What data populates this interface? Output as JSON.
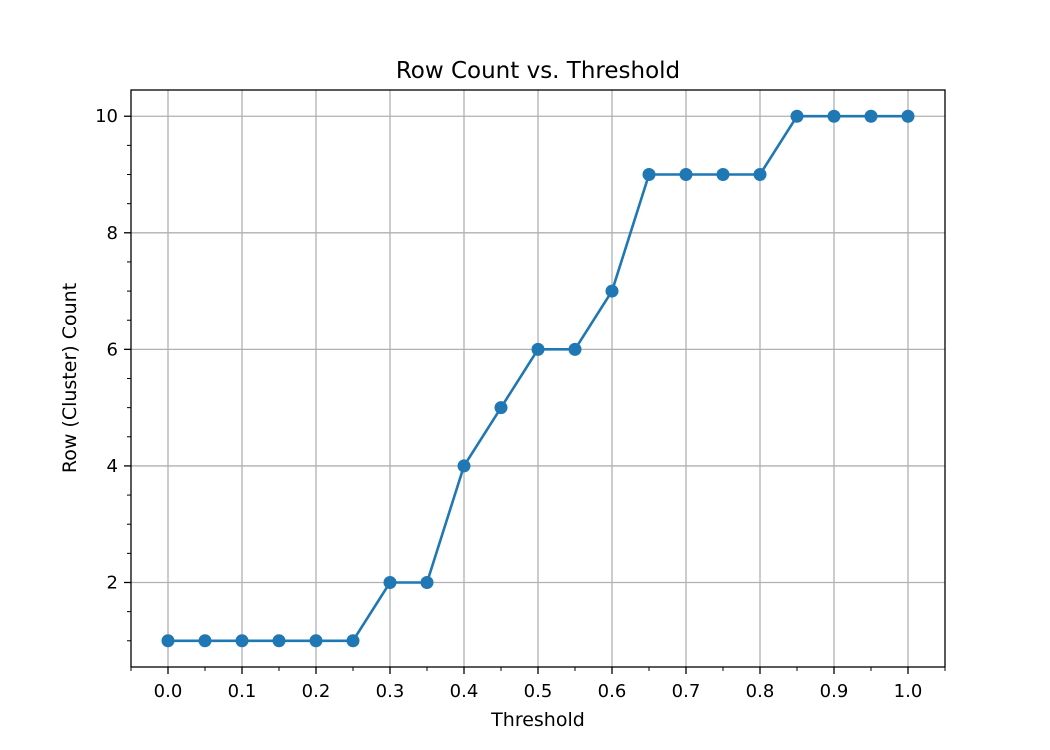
{
  "chart_data": {
    "type": "line",
    "title": "Row Count vs. Threshold",
    "xlabel": "Threshold",
    "ylabel": "Row (Cluster) Count",
    "xlim": [
      -0.05,
      1.05
    ],
    "ylim": [
      0.55,
      10.45
    ],
    "xticks": [
      0.0,
      0.1,
      0.2,
      0.3,
      0.4,
      0.5,
      0.6,
      0.7,
      0.8,
      0.9,
      1.0
    ],
    "xtick_labels": [
      "0.0",
      "0.1",
      "0.2",
      "0.3",
      "0.4",
      "0.5",
      "0.6",
      "0.7",
      "0.8",
      "0.9",
      "1.0"
    ],
    "yticks": [
      2,
      4,
      6,
      8,
      10
    ],
    "ytick_labels": [
      "2",
      "4",
      "6",
      "8",
      "10"
    ],
    "grid": true,
    "marker": "circle",
    "series": [
      {
        "color": "#1f77b4",
        "x": [
          0.0,
          0.05,
          0.1,
          0.15,
          0.2,
          0.25,
          0.3,
          0.35,
          0.4,
          0.45,
          0.5,
          0.55,
          0.6,
          0.65,
          0.7,
          0.75,
          0.8,
          0.85,
          0.9,
          0.95,
          1.0
        ],
        "y": [
          1,
          1,
          1,
          1,
          1,
          1,
          2,
          2,
          4,
          5,
          6,
          6,
          7,
          9,
          9,
          9,
          9,
          10,
          10,
          10,
          10
        ]
      }
    ]
  }
}
